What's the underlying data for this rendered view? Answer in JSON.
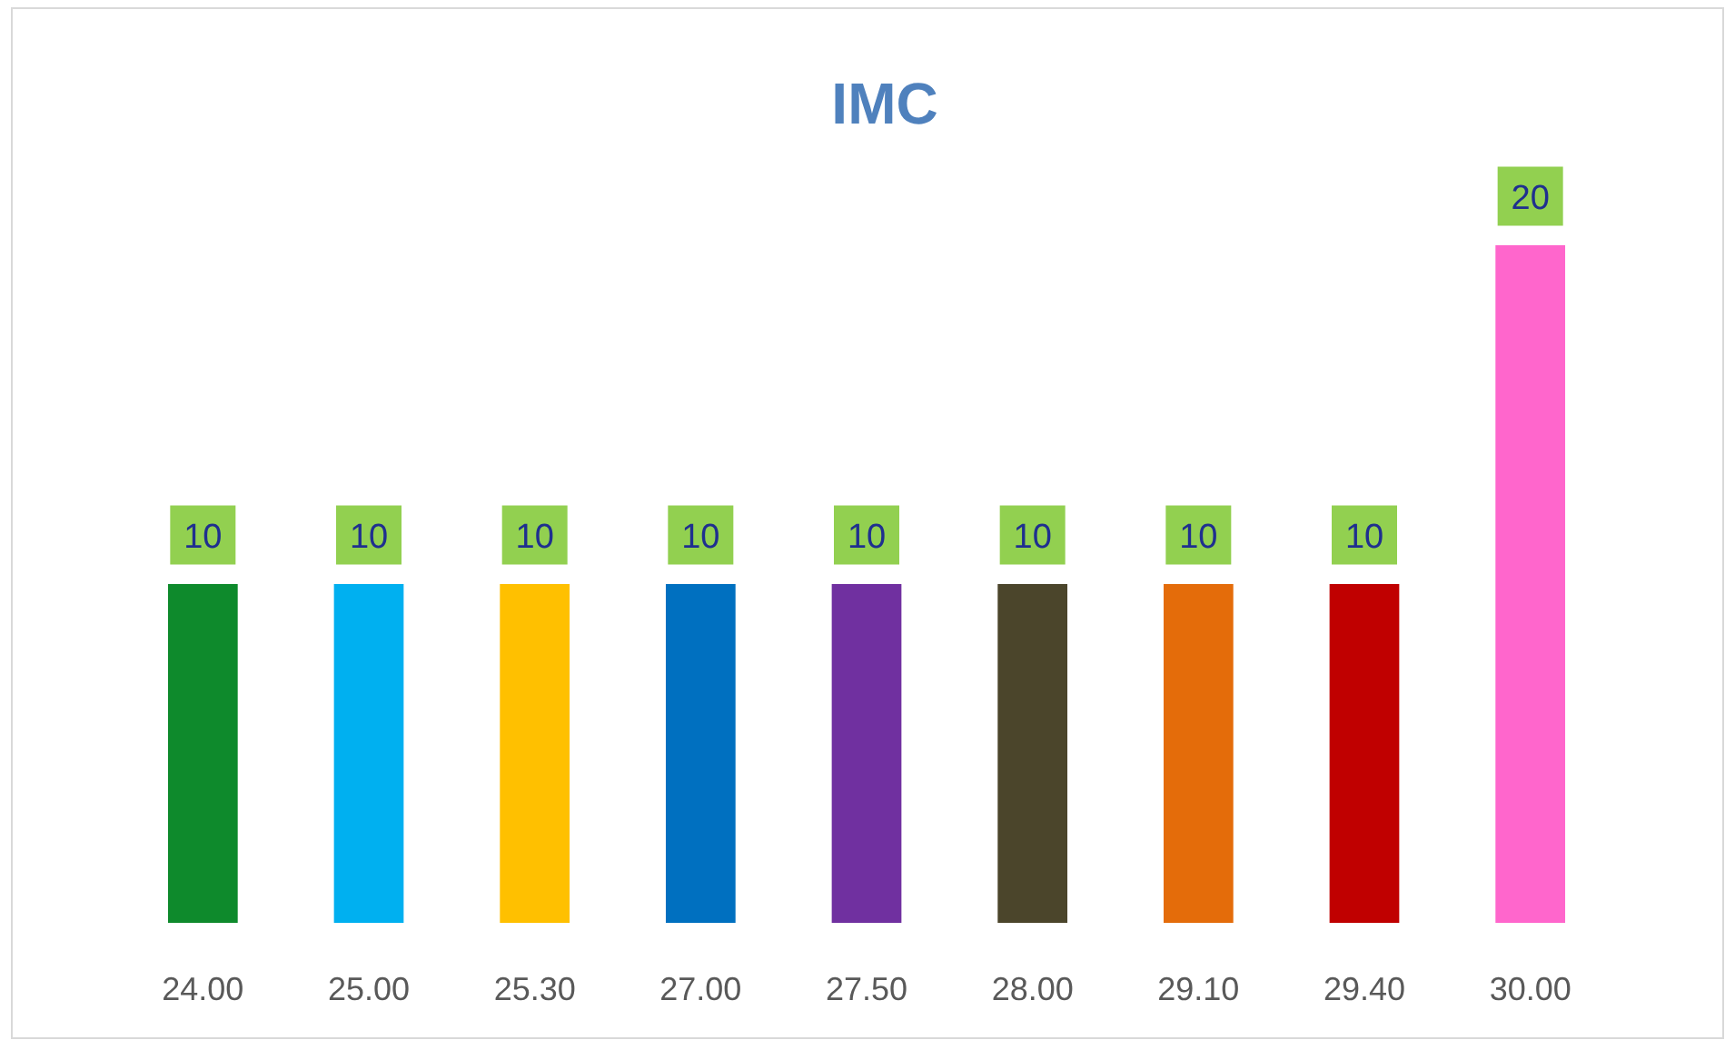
{
  "chart_data": {
    "type": "bar",
    "title": "IMC",
    "categories": [
      "24.00",
      "25.00",
      "25.30",
      "27.00",
      "27.50",
      "28.00",
      "29.10",
      "29.40",
      "30.00"
    ],
    "values": [
      10,
      10,
      10,
      10,
      10,
      10,
      10,
      10,
      20
    ],
    "colors": [
      "#0e8a2c",
      "#00b0f0",
      "#ffc000",
      "#0070c0",
      "#7030a0",
      "#4b452b",
      "#e46c0a",
      "#c00000",
      "#ff66cc"
    ],
    "data_labels": true,
    "grid": false,
    "legend": false
  }
}
